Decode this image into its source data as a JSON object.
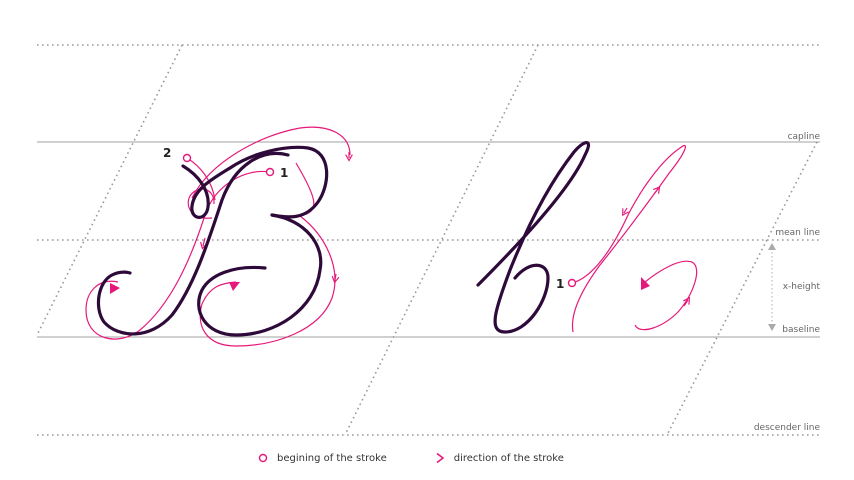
{
  "guides": {
    "capline": "capline",
    "mean_line": "mean line",
    "x_height": "x-height",
    "baseline": "baseline",
    "descender_line": "descender line"
  },
  "markers": {
    "stroke_1_B": "1",
    "stroke_2_B": "2",
    "stroke_1_b": "1"
  },
  "legend": {
    "start_label": "begining of the stroke",
    "direction_label": "direction of the stroke"
  },
  "colors": {
    "ink": "#2e0a3a",
    "accent": "#e6197a",
    "guide_solid": "#a0a0a0",
    "guide_dotted": "#9a9a9a"
  }
}
